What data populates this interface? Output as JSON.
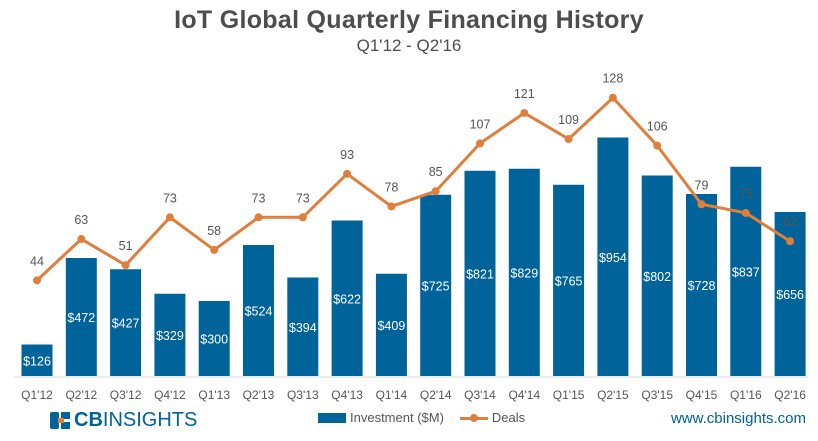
{
  "chart_data": {
    "type": "bar+line",
    "title": "IoT Global Quarterly Financing History",
    "subtitle": "Q1'12 - Q2'16",
    "categories": [
      "Q1'12",
      "Q2'12",
      "Q3'12",
      "Q4'12",
      "Q1'13",
      "Q2'13",
      "Q3'13",
      "Q4'13",
      "Q1'14",
      "Q2'14",
      "Q3'14",
      "Q4'14",
      "Q1'15",
      "Q2'15",
      "Q3'15",
      "Q4'15",
      "Q1'16",
      "Q2'16"
    ],
    "series": [
      {
        "name": "Investment ($M)",
        "type": "bar",
        "color": "#00639a",
        "values": [
          126,
          472,
          427,
          329,
          300,
          524,
          394,
          622,
          409,
          725,
          821,
          829,
          765,
          954,
          802,
          728,
          837,
          656
        ],
        "label_prefix": "$"
      },
      {
        "name": "Deals",
        "type": "line",
        "color": "#e07e3c",
        "values": [
          44,
          63,
          51,
          73,
          58,
          73,
          73,
          93,
          78,
          85,
          107,
          121,
          109,
          128,
          106,
          79,
          75,
          62
        ]
      }
    ],
    "investment_ylim": [
      0,
      1200
    ],
    "deals_ylim": [
      0,
      138
    ],
    "grid": false,
    "legend_position": "bottom-center"
  },
  "footer": {
    "logo_text_bold": "CB",
    "logo_text": "INSIGHTS",
    "url": "www.cbinsights.com"
  }
}
